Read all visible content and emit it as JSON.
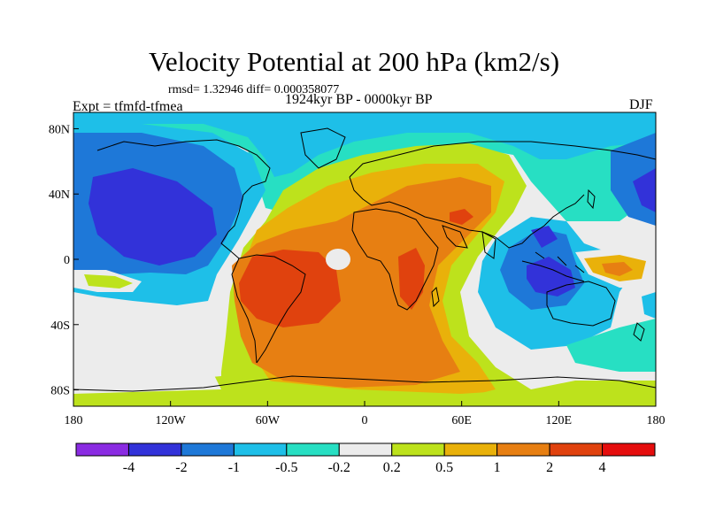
{
  "title": "Velocity Potential at 200 hPa (km2/s)",
  "stats": "rmsd= 1.32946 diff= 0.000358077",
  "left_label": "Expt = tfmfd-tfmea",
  "center_label": "1924kyr BP - 0000kyr BP",
  "right_label": "DJF",
  "axes": {
    "lon_ticks": [
      "180",
      "120W",
      "60W",
      "0",
      "60E",
      "120E",
      "180"
    ],
    "lat_ticks": [
      "80N",
      "40N",
      "0",
      "40S",
      "80S"
    ]
  },
  "colorbar": {
    "labels": [
      "-4",
      "-2",
      "-1",
      "-0.5",
      "-0.2",
      "0.2",
      "0.5",
      "1",
      "2",
      "4"
    ],
    "colors": [
      "#8a2be2",
      "#3232d9",
      "#1e78d8",
      "#1ebfe8",
      "#27dfc3",
      "#ececec",
      "#bde21c",
      "#e9b10a",
      "#e77f12",
      "#e0420e",
      "#e50d0d"
    ]
  }
}
